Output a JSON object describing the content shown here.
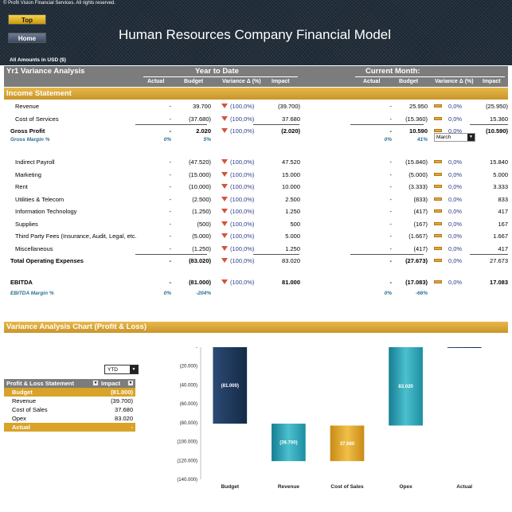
{
  "header": {
    "copyright": "© Profit Vision Financial Services. All rights reserved.",
    "top_button": "Top",
    "home_button": "Home",
    "title": "Human Resources Company Financial Model",
    "amounts_note": "All Amounts in  USD ($)"
  },
  "analysis": {
    "title": "Yr1 Variance Analysis",
    "ytd_label": "Year to Date",
    "current_month_label": "Current Month:",
    "month_selected": "March",
    "columns": {
      "actual": "Actual",
      "budget": "Budget",
      "variance": "Variance Δ  (%)",
      "impact": "Impact"
    }
  },
  "income_statement": {
    "title": "Income Statement",
    "rows": [
      {
        "label": "Revenue",
        "act": "-",
        "bud": "39.700",
        "var": "(100,0%)",
        "imp": "(39.700)",
        "mact": "-",
        "mbud": "25.950",
        "mvar": "0,0%",
        "mimp": "(25.950)"
      },
      {
        "label": "Cost of Services",
        "act": "-",
        "bud": "(37.680)",
        "var": "(100,0%)",
        "imp": "37.680",
        "mact": "-",
        "mbud": "(15.360)",
        "mvar": "0,0%",
        "mimp": "15.360"
      },
      {
        "label": "Gross Profit",
        "act": "-",
        "bud": "2.020",
        "var": "(100,0%)",
        "imp": "(2.020)",
        "mact": "-",
        "mbud": "10.590",
        "mvar": "0,0%",
        "mimp": "(10.590)"
      },
      {
        "label": "Gross Margin %",
        "act": "0%",
        "bud": "5%",
        "mact": "0%",
        "mbud": "41%"
      },
      {
        "label": "Indirect Payroll",
        "act": "-",
        "bud": "(47.520)",
        "var": "(100,0%)",
        "imp": "47.520",
        "mact": "-",
        "mbud": "(15.840)",
        "mvar": "0,0%",
        "mimp": "15.840"
      },
      {
        "label": "Marketing",
        "act": "-",
        "bud": "(15.000)",
        "var": "(100,0%)",
        "imp": "15.000",
        "mact": "-",
        "mbud": "(5.000)",
        "mvar": "0,0%",
        "mimp": "5.000"
      },
      {
        "label": "Rent",
        "act": "-",
        "bud": "(10.000)",
        "var": "(100,0%)",
        "imp": "10.000",
        "mact": "-",
        "mbud": "(3.333)",
        "mvar": "0,0%",
        "mimp": "3.333"
      },
      {
        "label": "Utilities & Telecom",
        "act": "-",
        "bud": "(2.500)",
        "var": "(100,0%)",
        "imp": "2.500",
        "mact": "-",
        "mbud": "(833)",
        "mvar": "0,0%",
        "mimp": "833"
      },
      {
        "label": "Information Technology",
        "act": "-",
        "bud": "(1.250)",
        "var": "(100,0%)",
        "imp": "1.250",
        "mact": "-",
        "mbud": "(417)",
        "mvar": "0,0%",
        "mimp": "417"
      },
      {
        "label": "Supplies",
        "act": "-",
        "bud": "(500)",
        "var": "(100,0%)",
        "imp": "500",
        "mact": "-",
        "mbud": "(167)",
        "mvar": "0,0%",
        "mimp": "167"
      },
      {
        "label": "Third Party Fees (Insurance, Audit, Legal, etc.",
        "act": "-",
        "bud": "(5.000)",
        "var": "(100,0%)",
        "imp": "5.000",
        "mact": "-",
        "mbud": "(1.667)",
        "mvar": "0,0%",
        "mimp": "1.667"
      },
      {
        "label": "Miscellaneous",
        "act": "-",
        "bud": "(1.250)",
        "var": "(100,0%)",
        "imp": "1.250",
        "mact": "-",
        "mbud": "(417)",
        "mvar": "0,0%",
        "mimp": "417"
      },
      {
        "label": "Total Operating Expenses",
        "act": "-",
        "bud": "(83.020)",
        "var": "(100,0%)",
        "imp": "83.020",
        "mact": "-",
        "mbud": "(27.673)",
        "mvar": "0,0%",
        "mimp": "27.673"
      },
      {
        "label": "EBITDA",
        "act": "-",
        "bud": "(81.000)",
        "var": "(100,0%)",
        "imp": "81.000",
        "mact": "-",
        "mbud": "(17.083)",
        "mvar": "0,0%",
        "mimp": "17.083"
      },
      {
        "label": "EBITDA Margin %",
        "act": "0%",
        "bud": "-204%",
        "mact": "0%",
        "mbud": "-66%"
      }
    ]
  },
  "chart_section": {
    "title": "Variance Analysis Chart (Profit & Loss)",
    "period_selected": "YTD",
    "table_headers": {
      "statement": "Profit & Loss Statement",
      "impact": "Impact"
    },
    "table_rows": [
      {
        "label": "Budget",
        "value": "(81.000)"
      },
      {
        "label": "Revenue",
        "value": "(39.700)"
      },
      {
        "label": "Cost of Sales",
        "value": "37.680"
      },
      {
        "label": "Opex",
        "value": "83.020"
      },
      {
        "label": "Actual",
        "value": "-"
      }
    ]
  },
  "chart_data": {
    "type": "bar",
    "subtype": "waterfall",
    "categories": [
      "Budget",
      "Revenue",
      "Cost of Sales",
      "Opex",
      "Actual"
    ],
    "values": [
      -81000,
      -39700,
      37680,
      83020,
      0
    ],
    "data_labels": [
      "(81.000)",
      "(39.700)",
      "37.680",
      "83.020",
      ""
    ],
    "ylim": [
      -140000,
      0
    ],
    "yticks": [
      "-",
      "(20.000)",
      "(40.000)",
      "(60.000)",
      "(80.000)",
      "(100.000)",
      "(120.000)",
      "(140.000)"
    ],
    "colors": {
      "Budget": "#1f3a5f",
      "Revenue": "#2a9db0",
      "Cost of Sales": "#e0a72a",
      "Opex": "#2a9db0",
      "Actual": "#1f3a5f"
    }
  }
}
